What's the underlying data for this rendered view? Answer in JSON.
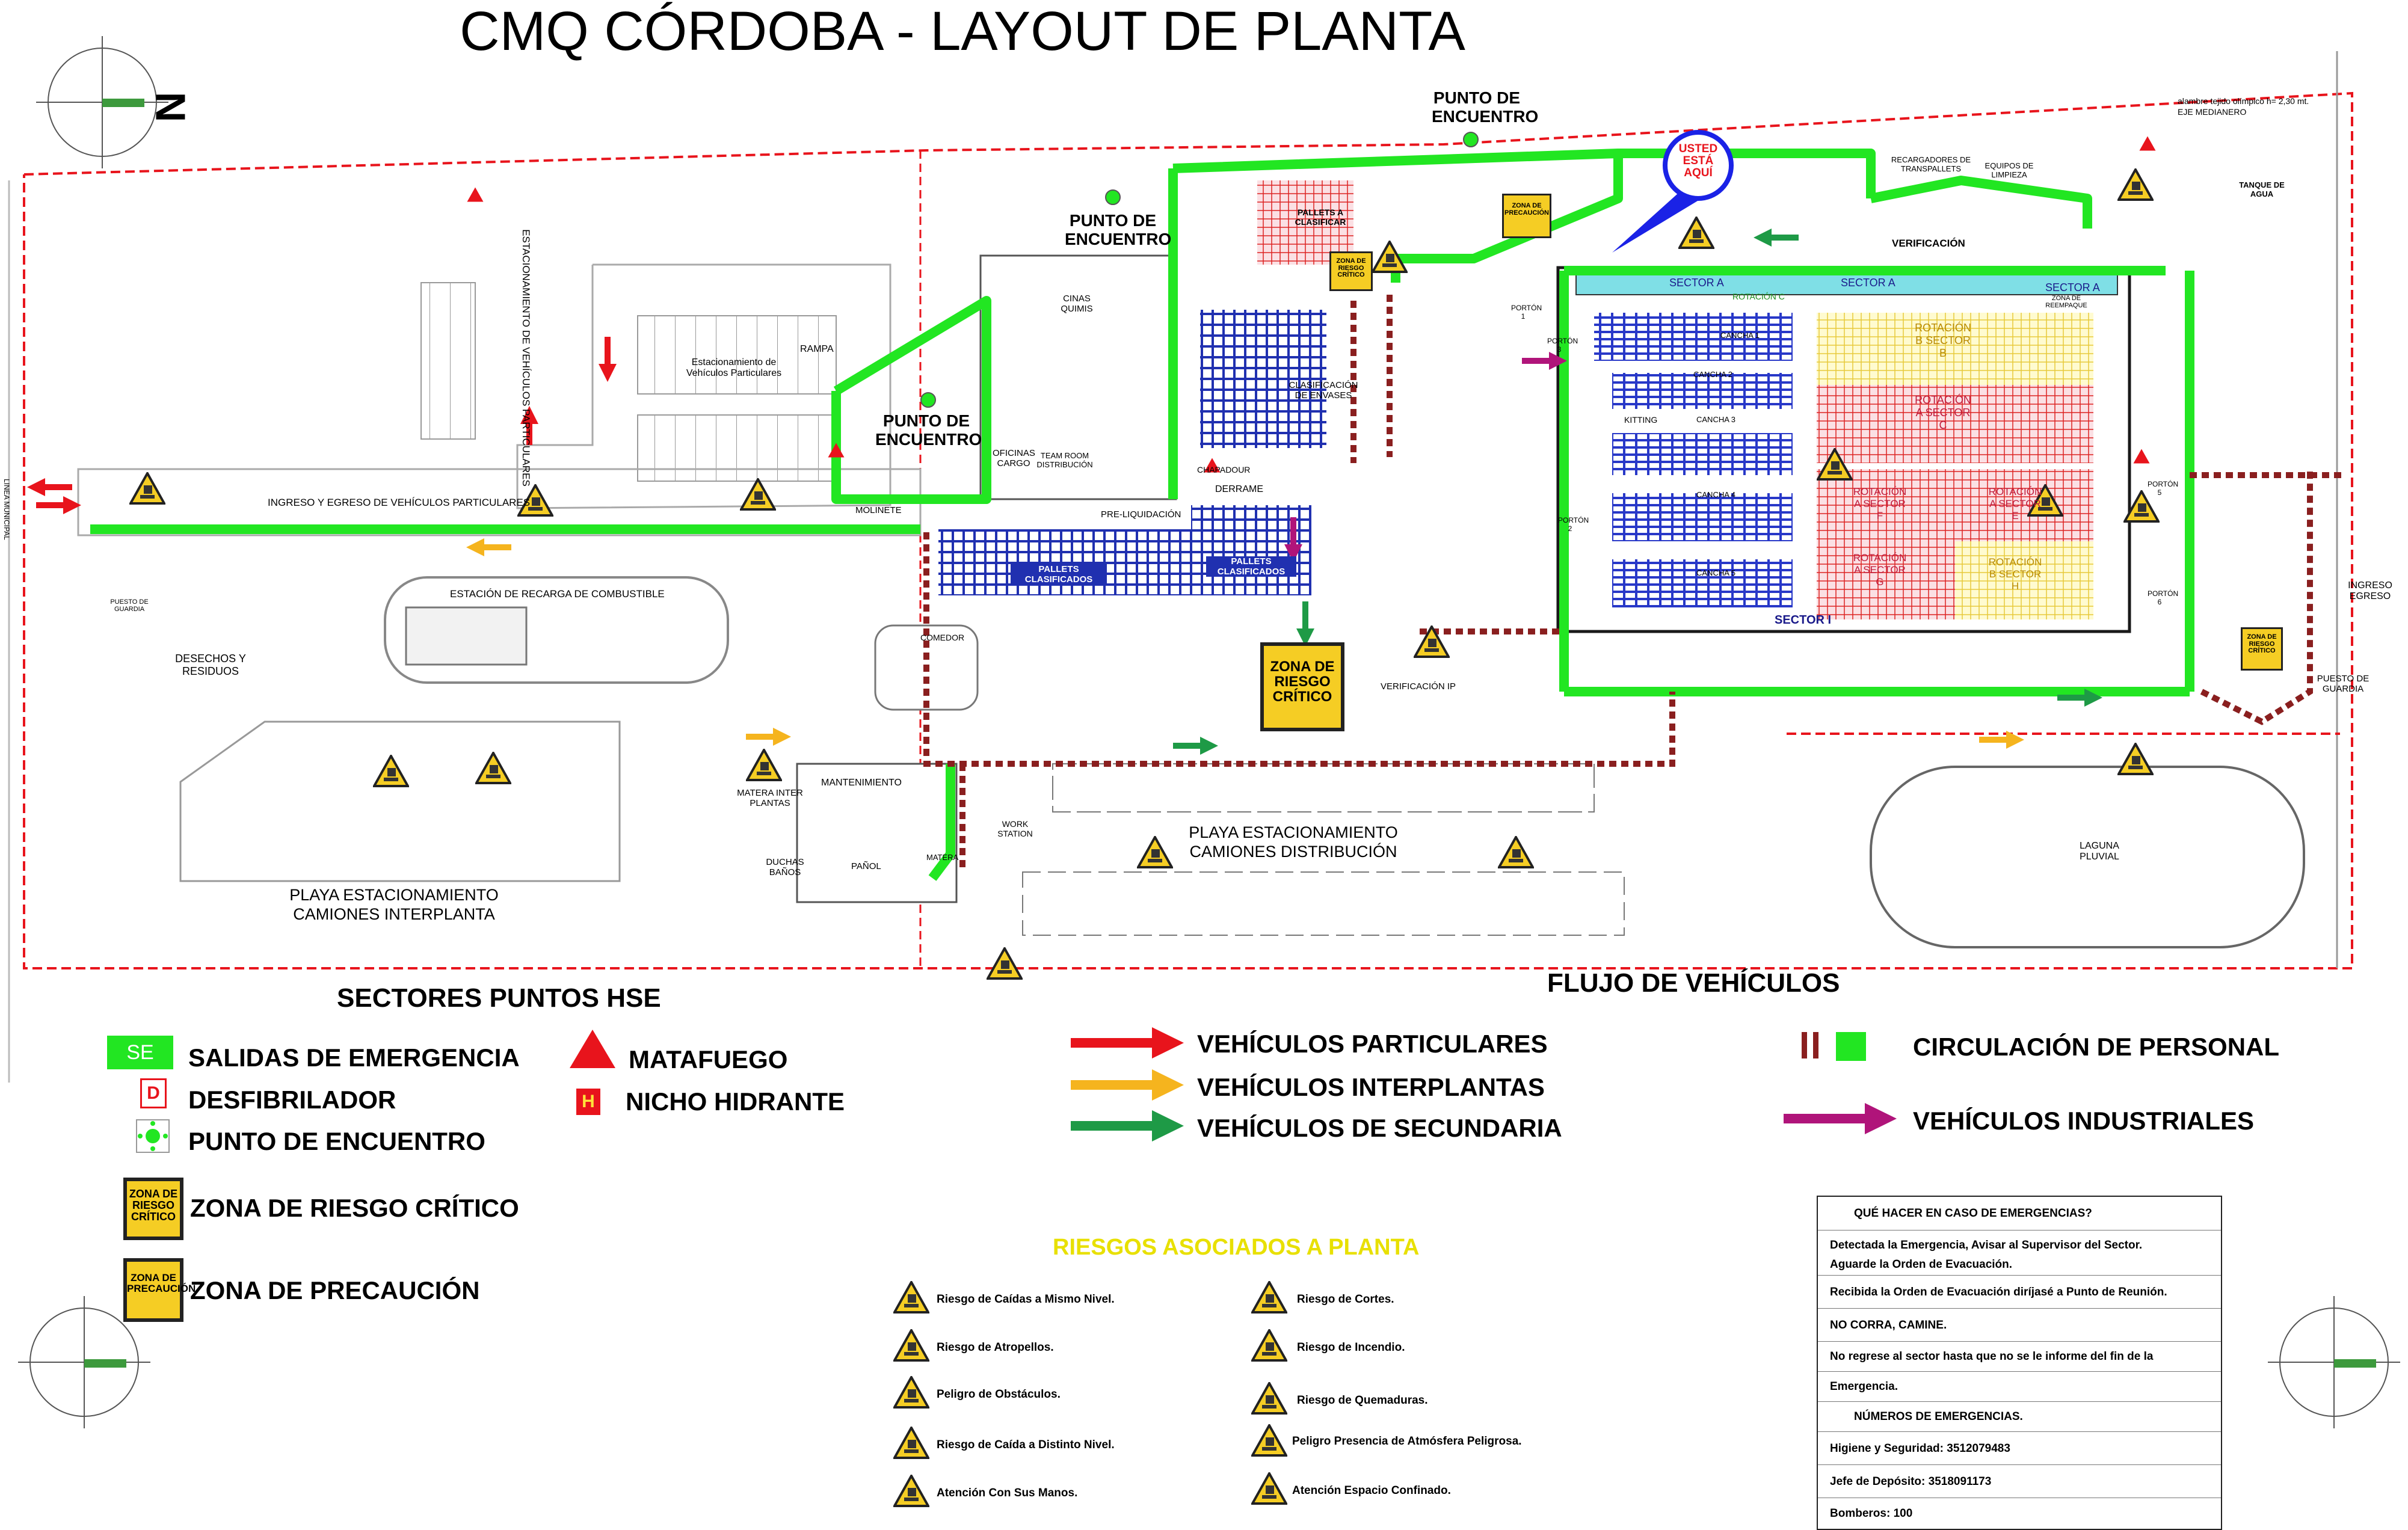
{
  "title": "CMQ CÓRDOBA - LAYOUT DE PLANTA",
  "compass": {
    "north": "N"
  },
  "map_labels": {
    "punto_encuentro_top": "PUNTO DE ENCUENTRO",
    "punto_encuentro_mid": "PUNTO DE ENCUENTRO",
    "punto_encuentro_left": "PUNTO DE ENCUENTRO",
    "usted_esta_aqui": "USTED ESTÁ AQUÍ",
    "estacionamiento_vehiculos": "ESTACIONAMIENTO DE VEHÍCULOS PARTICULARES",
    "estacionamiento_particulares": "Estacionamiento de Vehículos Particulares",
    "rampa": "RAMPA",
    "ingreso_egreso": "INGRESO Y EGRESO DE VEHÍCULOS PARTICULARES",
    "molinete": "MOLINETE",
    "estacion_combustible": "ESTACIÓN DE RECARGA DE COMBUSTIBLE",
    "desechos": "DESECHOS Y RESIDUOS",
    "puesto_guardia_left": "PUESTO DE GUARDIA",
    "playa_interplanta": "PLAYA ESTACIONAMIENTO CAMIONES INTERPLANTA",
    "playa_distribucion": "PLAYA ESTACIONAMIENTO CAMIONES DISTRIBUCIÓN",
    "mantenimiento": "MANTENIMIENTO",
    "matera_interplantas": "MATERA INTER PLANTAS",
    "duchas_banos": "DUCHAS BAÑOS",
    "panol": "PAÑOL",
    "matera": "MATERA",
    "work_station": "WORK STATION",
    "comedor": "COMEDOR",
    "oficinas_cargo": "OFICINAS CARGO",
    "team_room": "TEAM ROOM DISTRIBUCIÓN",
    "cinas_quimis": "CINAS QUIMIS",
    "pre_liquidacion": "PRE-LIQUIDACIÓN",
    "pallets_clasificados_1": "PALLETS CLASIFICADOS",
    "pallets_clasificados_2": "PALLETS CLASIFICADOS",
    "pallets_a_clasificar": "PALLETS A CLASIFICAR",
    "clasificacion_envases": "CLASIFICACIÓN DE ENVASES",
    "chapadour": "CHAPADOUR",
    "derrame": "DERRAME",
    "verificacion_ip": "VERIFICACIÓN IP",
    "zona_riesgo_big": "ZONA DE RIESGO CRÍTICO",
    "zona_riesgo_small_1": "ZONA DE RIESGO CRÍTICO",
    "zona_precaucion_map": "ZONA DE PRECAUCIÓN",
    "zona_riesgo_right": "ZONA DE RIESGO CRÍTICO",
    "porton_1": "PORTÓN 1",
    "porton_2": "PORTÓN 2",
    "porton_3": "PORTÓN 3",
    "porton_5": "PORTÓN 5",
    "porton_6": "PORTÓN 6",
    "sector_a1": "SECTOR A",
    "sector_a2": "SECTOR A",
    "sector_a3": "SECTOR A",
    "rotacion_c": "ROTACIÓN C",
    "sector_b": "ROTACIÓN B SECTOR B",
    "sector_c": "ROTACIÓN A SECTOR C",
    "sector_f": "ROTACIÓN A SECTOR F",
    "sector_e": "ROTACIÓN A SECTOR E",
    "sector_g": "ROTACIÓN A SECTOR G",
    "sector_h": "ROTACIÓN B SECTOR H",
    "sector_i": "SECTOR I",
    "kitting": "KITTING",
    "cancha_1": "CANCHA 1",
    "cancha_2": "CANCHA 2",
    "cancha_3": "CANCHA 3",
    "cancha_4": "CANCHA 4",
    "cancha_5": "CANCHA 5",
    "verificacion": "VERIFICACIÓN",
    "recargadores": "RECARGADORES DE TRANSPALLETS",
    "equipos_limpieza": "EQUIPOS DE LIMPIEZA",
    "tanque_agua": "TANQUE DE AGUA",
    "zona_reempaque": "ZONA DE REEMPAQUE",
    "alambre": "alambre tejido olímpico h= 2,30 mt.",
    "eje_medianero": "EJE MEDIANERO",
    "laguna": "LAGUNA PLUVIAL",
    "ingreso_egreso_right": "INGRESO EGRESO",
    "puesto_guardia_right": "PUESTO DE GUARDIA",
    "linea_municipal": "LINEA MUNICIPAL"
  },
  "legend_hse": {
    "header": "SECTORES PUNTOS HSE",
    "se_badge": "SE",
    "salidas": "SALIDAS DE EMERGENCIA",
    "desfib_badge": "D",
    "desfibrilador": "DESFIBRILADOR",
    "punto": "PUNTO DE ENCUENTRO",
    "matafuego": "MATAFUEGO",
    "hidrante_badge": "H",
    "hidrante": "NICHO HIDRANTE",
    "zona_riesgo_badge": "ZONA DE RIESGO CRÍTICO",
    "zona_riesgo": "ZONA DE RIESGO CRÍTICO",
    "zona_precaucion_badge": "ZONA DE PRECAUCIÓN",
    "zona_precaucion": "ZONA DE PRECAUCIÓN"
  },
  "legend_flow": {
    "header": "FLUJO DE VEHÍCULOS",
    "particulares": "VEHÍCULOS PARTICULARES",
    "interplantas": "VEHÍCULOS INTERPLANTAS",
    "secundaria": "VEHÍCULOS DE SECUNDARIA",
    "personal": "CIRCULACIÓN DE PERSONAL",
    "industriales": "VEHÍCULOS INDUSTRIALES"
  },
  "risks": {
    "header": "RIESGOS ASOCIADOS A PLANTA",
    "items": [
      "Riesgo de Caídas a Mismo Nivel.",
      "Riesgo de Atropellos.",
      "Peligro de Obstáculos.",
      "Riesgo de Caída a Distinto Nivel.",
      "Atención Con Sus Manos.",
      "Riesgo de Cortes.",
      "Riesgo de Incendio.",
      "Riesgo de Quemaduras.",
      "Peligro Presencia de Atmósfera Peligrosa.",
      "Atención Espacio Confinado."
    ]
  },
  "emergency": {
    "title": "QUÉ HACER EN CASO DE EMERGENCIAS?",
    "rows": [
      "Detectada la Emergencia, Avisar al Supervisor del Sector.",
      "Aguarde la Orden de Evacuación.",
      "Recibida la Orden de Evacuación diríjasé a Punto de Reunión.",
      "NO CORRA, CAMINE.",
      "No regrese al sector hasta que no se le informe del fin de la",
      "Emergencia."
    ],
    "numbers_title": "NÚMEROS DE EMERGENCIAS.",
    "numbers": [
      "Higiene y Seguridad:  3512079483",
      "Jefe de Depósito: 3518091173",
      "Bomberos: 100"
    ]
  },
  "colors": {
    "personal_green": "#22e622",
    "particulares": "#e8141c",
    "interplantas": "#f5b41e",
    "secundaria": "#1e9a46",
    "industriales": "#b0147a",
    "zona_yellow": "#f5cd24",
    "fence_red": "#e8141c",
    "usted_blue": "#1a22e6",
    "warehouse_grid": "#2030b0",
    "rotation_pink": "#e03a5a",
    "rotation_yellow": "#f2e84a"
  }
}
